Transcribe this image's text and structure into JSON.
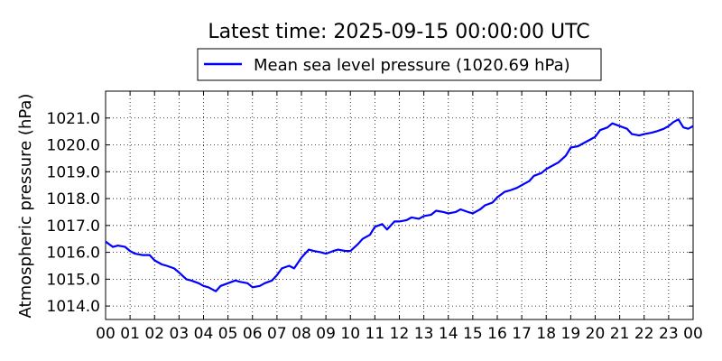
{
  "chart_data": {
    "type": "line",
    "title": "Latest time: 2025-09-15 00:00:00 UTC",
    "ylabel": "Atmospheric pressure (hPa)",
    "xlabel": "",
    "xlim": [
      0,
      24
    ],
    "ylim": [
      1013.5,
      1022.0
    ],
    "grid": true,
    "legend_position": "top-center-outside",
    "x_tick_labels": [
      "00",
      "01",
      "02",
      "03",
      "04",
      "05",
      "06",
      "07",
      "08",
      "09",
      "10",
      "11",
      "12",
      "13",
      "14",
      "15",
      "16",
      "17",
      "18",
      "19",
      "20",
      "21",
      "22",
      "23",
      "00"
    ],
    "y_ticks": [
      1014.0,
      1015.0,
      1016.0,
      1017.0,
      1018.0,
      1019.0,
      1020.0,
      1021.0
    ],
    "y_tick_labels": [
      "1014.0",
      "1015.0",
      "1016.0",
      "1017.0",
      "1018.0",
      "1019.0",
      "1020.0",
      "1021.0"
    ],
    "series": [
      {
        "name": "Mean sea level pressure (1020.69 hPa)",
        "color": "#0000ff",
        "x": [
          0.0,
          0.3,
          0.5,
          0.8,
          1.0,
          1.2,
          1.5,
          1.8,
          2.0,
          2.3,
          2.5,
          2.8,
          3.0,
          3.3,
          3.5,
          3.8,
          4.0,
          4.2,
          4.5,
          4.7,
          5.0,
          5.3,
          5.5,
          5.8,
          6.0,
          6.3,
          6.5,
          6.8,
          7.0,
          7.2,
          7.5,
          7.7,
          8.0,
          8.3,
          8.5,
          8.8,
          9.0,
          9.3,
          9.5,
          9.8,
          10.0,
          10.3,
          10.5,
          10.8,
          11.0,
          11.3,
          11.5,
          11.8,
          12.0,
          12.3,
          12.5,
          12.8,
          13.0,
          13.3,
          13.5,
          13.8,
          14.0,
          14.3,
          14.5,
          14.8,
          15.0,
          15.3,
          15.5,
          15.8,
          16.0,
          16.3,
          16.5,
          16.8,
          17.0,
          17.3,
          17.5,
          17.8,
          18.0,
          18.3,
          18.5,
          18.8,
          19.0,
          19.3,
          19.5,
          19.8,
          20.0,
          20.2,
          20.5,
          20.7,
          21.0,
          21.3,
          21.5,
          21.8,
          22.0,
          22.3,
          22.5,
          22.8,
          23.0,
          23.2,
          23.4,
          23.6,
          23.8,
          24.0
        ],
        "y": [
          1016.4,
          1016.2,
          1016.25,
          1016.2,
          1016.05,
          1015.95,
          1015.9,
          1015.9,
          1015.7,
          1015.55,
          1015.5,
          1015.4,
          1015.25,
          1015.0,
          1014.95,
          1014.85,
          1014.75,
          1014.7,
          1014.55,
          1014.75,
          1014.85,
          1014.95,
          1014.9,
          1014.85,
          1014.7,
          1014.75,
          1014.85,
          1014.95,
          1015.15,
          1015.4,
          1015.5,
          1015.4,
          1015.8,
          1016.1,
          1016.05,
          1016.0,
          1015.95,
          1016.05,
          1016.1,
          1016.05,
          1016.05,
          1016.3,
          1016.5,
          1016.65,
          1016.95,
          1017.05,
          1016.85,
          1017.15,
          1017.15,
          1017.2,
          1017.3,
          1017.25,
          1017.35,
          1017.4,
          1017.55,
          1017.5,
          1017.45,
          1017.5,
          1017.6,
          1017.5,
          1017.45,
          1017.6,
          1017.75,
          1017.85,
          1018.05,
          1018.25,
          1018.3,
          1018.4,
          1018.5,
          1018.65,
          1018.85,
          1018.95,
          1019.1,
          1019.25,
          1019.35,
          1019.6,
          1019.9,
          1019.95,
          1020.05,
          1020.2,
          1020.3,
          1020.55,
          1020.65,
          1020.8,
          1020.7,
          1020.6,
          1020.4,
          1020.35,
          1020.4,
          1020.45,
          1020.5,
          1020.6,
          1020.7,
          1020.85,
          1020.95,
          1020.65,
          1020.6,
          1020.7
        ]
      }
    ]
  }
}
